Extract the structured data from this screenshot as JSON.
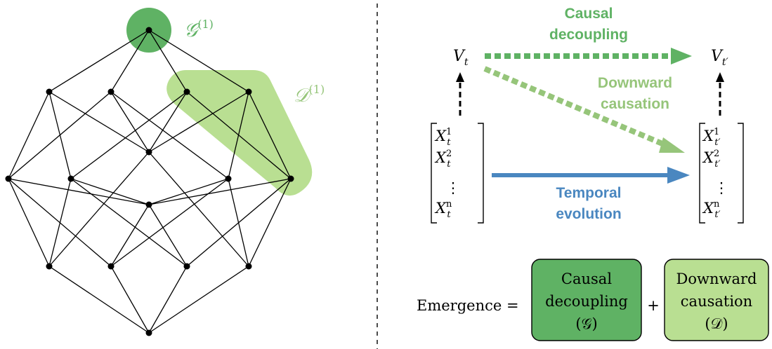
{
  "lattice": {
    "g_label": "𝒢",
    "g_sup": "(1)",
    "d_label": "𝒟",
    "d_sup": "(1)"
  },
  "diagram": {
    "v_t": "V",
    "v_t_sub": "t",
    "v_tp": "V",
    "v_tp_sub": "t′",
    "causal_decoupling_line1": "Causal",
    "causal_decoupling_line2": "decoupling",
    "downward_causation_line1": "Downward",
    "downward_causation_line2": "causation",
    "temporal_evolution_line1": "Temporal",
    "temporal_evolution_line2": "evolution",
    "vec_left": [
      "X",
      "X",
      "⋮",
      "X"
    ],
    "vec_left_sup": [
      "1",
      "2",
      "",
      "n"
    ],
    "vec_left_sub": [
      "t",
      "t",
      "",
      "t"
    ],
    "vec_right": [
      "X",
      "X",
      "⋮",
      "X"
    ],
    "vec_right_sup": [
      "1",
      "2",
      "",
      "n"
    ],
    "vec_right_sub": [
      "t′",
      "t′",
      "",
      "t′"
    ]
  },
  "equation": {
    "lhs": "Emergence =",
    "plus": "+",
    "box1_line1": "Causal",
    "box1_line2": "decoupling",
    "box1_line3": "(𝒢)",
    "box2_line1": "Downward",
    "box2_line2": "causation",
    "box2_line3": "(𝒟)"
  },
  "colors": {
    "dark_green": "#5fb264",
    "light_green": "#b9df92",
    "mid_green": "#96c57a",
    "blue": "#4a87c0",
    "black": "#000000"
  }
}
